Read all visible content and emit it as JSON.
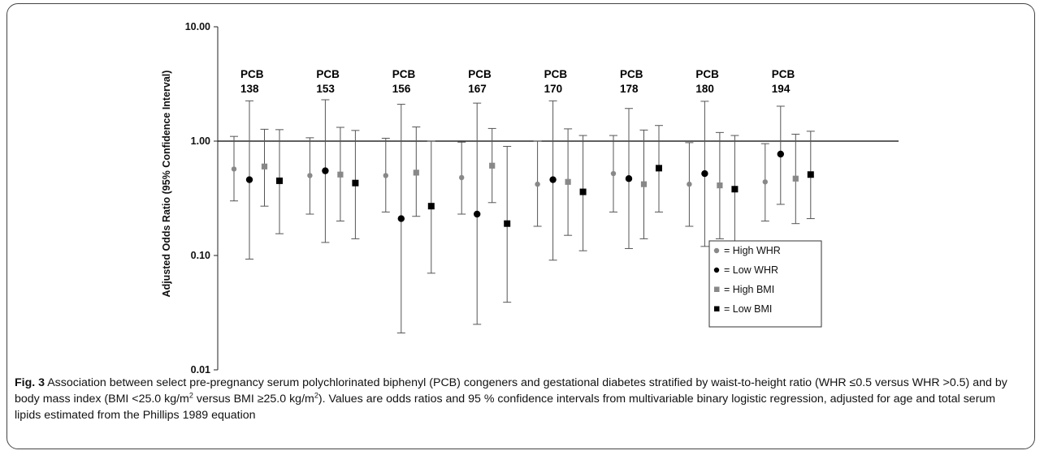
{
  "chart_data": {
    "type": "scatter",
    "subtype": "dot-and-whisker (odds ratios with 95% confidence intervals)",
    "ylabel": "Adjusted Odds Ratio (95% Confidence Interval)",
    "yscale": "log",
    "ylim": [
      0.01,
      10
    ],
    "yticks": [
      "10.00",
      "1.00",
      "0.10",
      "0.01"
    ],
    "reference_line": 1.0,
    "categories": [
      {
        "line1": "PCB",
        "line2": "138"
      },
      {
        "line1": "PCB",
        "line2": "153"
      },
      {
        "line1": "PCB",
        "line2": "156"
      },
      {
        "line1": "PCB",
        "line2": "167"
      },
      {
        "line1": "PCB",
        "line2": "170"
      },
      {
        "line1": "PCB",
        "line2": "178"
      },
      {
        "line1": "PCB",
        "line2": "180"
      },
      {
        "line1": "PCB",
        "line2": "194"
      }
    ],
    "series": [
      {
        "name": "= High WHR",
        "marker": "circle",
        "color": "#888888",
        "points": [
          {
            "or": 0.57,
            "lo": 0.3,
            "hi": 1.1
          },
          {
            "or": 0.5,
            "lo": 0.23,
            "hi": 1.07
          },
          {
            "or": 0.5,
            "lo": 0.24,
            "hi": 1.06
          },
          {
            "or": 0.48,
            "lo": 0.23,
            "hi": 0.98
          },
          {
            "or": 0.42,
            "lo": 0.18,
            "hi": 1.0
          },
          {
            "or": 0.52,
            "lo": 0.24,
            "hi": 1.12
          },
          {
            "or": 0.42,
            "lo": 0.18,
            "hi": 0.97
          },
          {
            "or": 0.44,
            "lo": 0.2,
            "hi": 0.95
          }
        ]
      },
      {
        "name": "= Low WHR",
        "marker": "circle",
        "color": "#000000",
        "points": [
          {
            "or": 0.46,
            "lo": 0.093,
            "hi": 2.25
          },
          {
            "or": 0.55,
            "lo": 0.13,
            "hi": 2.3
          },
          {
            "or": 0.21,
            "lo": 0.021,
            "hi": 2.1
          },
          {
            "or": 0.23,
            "lo": 0.025,
            "hi": 2.15
          },
          {
            "or": 0.46,
            "lo": 0.091,
            "hi": 2.25
          },
          {
            "or": 0.47,
            "lo": 0.115,
            "hi": 1.93
          },
          {
            "or": 0.52,
            "lo": 0.12,
            "hi": 2.23
          },
          {
            "or": 0.77,
            "lo": 0.28,
            "hi": 2.02
          }
        ]
      },
      {
        "name": "= High BMI",
        "marker": "square",
        "color": "#888888",
        "points": [
          {
            "or": 0.6,
            "lo": 0.27,
            "hi": 1.27
          },
          {
            "or": 0.51,
            "lo": 0.2,
            "hi": 1.32
          },
          {
            "or": 0.53,
            "lo": 0.22,
            "hi": 1.33
          },
          {
            "or": 0.61,
            "lo": 0.29,
            "hi": 1.29
          },
          {
            "or": 0.44,
            "lo": 0.15,
            "hi": 1.28
          },
          {
            "or": 0.42,
            "lo": 0.14,
            "hi": 1.25
          },
          {
            "or": 0.41,
            "lo": 0.14,
            "hi": 1.19
          },
          {
            "or": 0.47,
            "lo": 0.19,
            "hi": 1.15
          }
        ]
      },
      {
        "name": "= Low BMI",
        "marker": "square",
        "color": "#000000",
        "points": [
          {
            "or": 0.45,
            "lo": 0.155,
            "hi": 1.26
          },
          {
            "or": 0.43,
            "lo": 0.14,
            "hi": 1.24
          },
          {
            "or": 0.27,
            "lo": 0.07,
            "hi": 1.0
          },
          {
            "or": 0.19,
            "lo": 0.039,
            "hi": 0.9
          },
          {
            "or": 0.36,
            "lo": 0.11,
            "hi": 1.12
          },
          {
            "or": 0.58,
            "lo": 0.24,
            "hi": 1.37
          },
          {
            "or": 0.38,
            "lo": 0.12,
            "hi": 1.12
          },
          {
            "or": 0.51,
            "lo": 0.21,
            "hi": 1.22
          }
        ]
      }
    ],
    "legend_position": "lower-right"
  },
  "caption": {
    "label": "Fig. 3",
    "text1": " Association between select pre-pregnancy serum polychlorinated biphenyl (PCB) congeners and gestational diabetes stratified by waist-to-height ratio (WHR ≤0.5 versus WHR >0.5) and by body mass index (BMI <25.0 kg/m",
    "sup1": "2",
    "text2": " versus BMI ≥25.0 kg/m",
    "sup2": "2",
    "text3": "). Values are odds ratios and 95 % confidence intervals from multivariable binary logistic regression, adjusted for age and total serum lipids estimated from the Phillips 1989 equation"
  }
}
